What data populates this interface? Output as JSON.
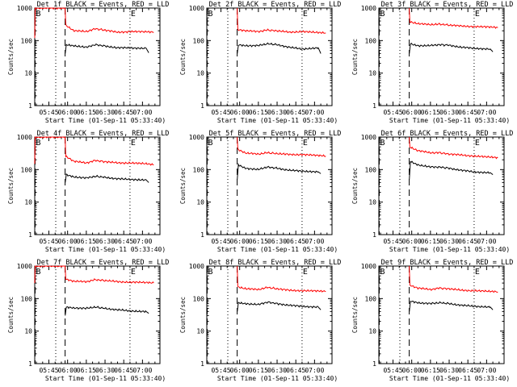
{
  "figure": {
    "colors": {
      "events": "#000000",
      "lld": "#ff0000",
      "axes": "#000000",
      "background": "#ffffff"
    }
  },
  "chart_data": [
    {
      "type": "line",
      "title": "Det 1f BLACK = Events, RED = LLD",
      "xlabel": "Start Time (01-Sep-11 05:33:40)",
      "ylabel": "Counts/sec",
      "xlim": [
        "05:33:40",
        "07:14:00"
      ],
      "ylim": [
        1,
        1000
      ],
      "yscale": "log",
      "xticks": [
        "05:45",
        "06:00",
        "06:15",
        "06:30",
        "06:45",
        "07:00"
      ],
      "yticks": [
        "1",
        "10",
        "100",
        "1000"
      ],
      "markers": [
        {
          "label": "B",
          "time": "05:34:00",
          "style": "dashed"
        },
        {
          "label": "",
          "time": "05:50:30",
          "style": "dotted"
        },
        {
          "label": "",
          "time": "05:58:00",
          "style": "dashed"
        },
        {
          "label": "E",
          "time": "06:50:00",
          "style": "dotted"
        }
      ],
      "series": [
        {
          "role": "lld",
          "x": [
            "05:33:40",
            "05:34:00",
            "05:58:00",
            "05:58:30",
            "06:05:00",
            "06:15:00",
            "06:22:00",
            "06:30:00",
            "06:40:00",
            "06:50:00",
            "07:03:00",
            "07:09:00"
          ],
          "y": [
            120,
            1000,
            1000,
            300,
            200,
            190,
            230,
            210,
            180,
            190,
            185,
            180
          ]
        },
        {
          "role": "events",
          "x": [
            "05:58:05",
            "05:59:00",
            "06:05:00",
            "06:15:00",
            "06:22:00",
            "06:30:00",
            "06:40:00",
            "06:50:00",
            "07:03:00",
            "07:05:00"
          ],
          "y": [
            40,
            75,
            70,
            62,
            75,
            68,
            60,
            60,
            58,
            42
          ]
        }
      ]
    },
    {
      "type": "line",
      "title": "Det 2f BLACK = Events, RED = LLD",
      "xlabel": "Start Time (01-Sep-11 05:33:40)",
      "ylabel": "Counts/sec",
      "xlim": [
        "05:33:40",
        "07:14:00"
      ],
      "ylim": [
        1,
        1000
      ],
      "yscale": "log",
      "xticks": [
        "05:45",
        "06:00",
        "06:15",
        "06:30",
        "06:45",
        "07:00"
      ],
      "yticks": [
        "1",
        "10",
        "100",
        "1000"
      ],
      "markers": [
        {
          "label": "B",
          "time": "05:34:00",
          "style": "dashed"
        },
        {
          "label": "",
          "time": "05:50:30",
          "style": "dotted"
        },
        {
          "label": "",
          "time": "05:58:00",
          "style": "dashed"
        },
        {
          "label": "E",
          "time": "06:50:00",
          "style": "dotted"
        }
      ],
      "series": [
        {
          "role": "lld",
          "x": [
            "05:58:00",
            "05:58:30",
            "06:05:00",
            "06:15:00",
            "06:22:00",
            "06:30:00",
            "06:40:00",
            "06:50:00",
            "07:03:00",
            "07:09:00"
          ],
          "y": [
            1000,
            220,
            200,
            190,
            210,
            200,
            180,
            190,
            175,
            170
          ]
        },
        {
          "role": "events",
          "x": [
            "05:58:05",
            "05:59:00",
            "06:05:00",
            "06:15:00",
            "06:22:00",
            "06:30:00",
            "06:40:00",
            "06:50:00",
            "07:03:00",
            "07:05:00"
          ],
          "y": [
            40,
            75,
            70,
            70,
            80,
            75,
            62,
            55,
            60,
            40
          ]
        }
      ]
    },
    {
      "type": "line",
      "title": "Det 3f BLACK = Events, RED = LLD",
      "xlabel": "Start Time (01-Sep-11 05:33:40)",
      "ylabel": "Counts/sec",
      "xlim": [
        "05:33:40",
        "07:14:00"
      ],
      "ylim": [
        1,
        1000
      ],
      "yscale": "log",
      "xticks": [
        "05:45",
        "06:00",
        "06:15",
        "06:30",
        "06:45",
        "07:00"
      ],
      "yticks": [
        "1",
        "10",
        "100",
        "1000"
      ],
      "markers": [
        {
          "label": "B",
          "time": "05:34:00",
          "style": "dashed"
        },
        {
          "label": "",
          "time": "05:50:30",
          "style": "dotted"
        },
        {
          "label": "",
          "time": "05:58:00",
          "style": "dashed"
        },
        {
          "label": "E",
          "time": "06:50:00",
          "style": "dotted"
        }
      ],
      "series": [
        {
          "role": "lld",
          "x": [
            "05:58:00",
            "05:58:30",
            "06:05:00",
            "06:15:00",
            "06:22:00",
            "06:30:00",
            "06:40:00",
            "06:50:00",
            "07:03:00",
            "07:09:00"
          ],
          "y": [
            1000,
            380,
            330,
            310,
            320,
            300,
            280,
            270,
            260,
            250
          ]
        },
        {
          "role": "events",
          "x": [
            "05:58:05",
            "05:59:00",
            "06:05:00",
            "06:15:00",
            "06:22:00",
            "06:30:00",
            "06:40:00",
            "06:50:00",
            "07:03:00",
            "07:05:00"
          ],
          "y": [
            40,
            80,
            70,
            70,
            75,
            72,
            62,
            58,
            55,
            45
          ]
        }
      ]
    },
    {
      "type": "line",
      "title": "Det 4f BLACK = Events, RED = LLD",
      "xlabel": "Start Time (01-Sep-11 05:33:40)",
      "ylabel": "Counts/sec",
      "xlim": [
        "05:33:40",
        "07:14:00"
      ],
      "ylim": [
        1,
        1000
      ],
      "yscale": "log",
      "xticks": [
        "05:45",
        "06:00",
        "06:15",
        "06:30",
        "06:45",
        "07:00"
      ],
      "yticks": [
        "1",
        "10",
        "100",
        "1000"
      ],
      "markers": [
        {
          "label": "B",
          "time": "05:34:00",
          "style": "dashed"
        },
        {
          "label": "",
          "time": "05:50:30",
          "style": "dotted"
        },
        {
          "label": "",
          "time": "05:58:00",
          "style": "dashed"
        },
        {
          "label": "E",
          "time": "06:50:00",
          "style": "dotted"
        }
      ],
      "series": [
        {
          "role": "lld",
          "x": [
            "05:33:40",
            "05:34:00",
            "05:58:00",
            "05:58:30",
            "06:05:00",
            "06:15:00",
            "06:22:00",
            "06:30:00",
            "06:40:00",
            "06:50:00",
            "07:03:00",
            "07:09:00"
          ],
          "y": [
            150,
            1000,
            1000,
            260,
            180,
            160,
            190,
            175,
            160,
            160,
            150,
            140
          ]
        },
        {
          "role": "events",
          "x": [
            "05:58:05",
            "05:59:00",
            "06:05:00",
            "06:15:00",
            "06:22:00",
            "06:30:00",
            "06:40:00",
            "06:50:00",
            "07:03:00",
            "07:05:00"
          ],
          "y": [
            40,
            70,
            60,
            55,
            62,
            58,
            52,
            50,
            48,
            40
          ]
        }
      ]
    },
    {
      "type": "line",
      "title": "Det 5f BLACK = Events, RED = LLD",
      "xlabel": "Start Time (01-Sep-11 05:33:40)",
      "ylabel": "Counts/sec",
      "xlim": [
        "05:33:40",
        "07:14:00"
      ],
      "ylim": [
        1,
        1000
      ],
      "yscale": "log",
      "xticks": [
        "05:45",
        "06:00",
        "06:15",
        "06:30",
        "06:45",
        "07:00"
      ],
      "yticks": [
        "1",
        "10",
        "100",
        "1000"
      ],
      "markers": [
        {
          "label": "B",
          "time": "05:34:00",
          "style": "dashed"
        },
        {
          "label": "",
          "time": "05:50:30",
          "style": "dotted"
        },
        {
          "label": "",
          "time": "05:58:00",
          "style": "dashed"
        },
        {
          "label": "E",
          "time": "06:50:00",
          "style": "dotted"
        }
      ],
      "series": [
        {
          "role": "lld",
          "x": [
            "05:58:00",
            "05:58:30",
            "06:05:00",
            "06:15:00",
            "06:22:00",
            "06:30:00",
            "06:40:00",
            "06:50:00",
            "07:03:00",
            "07:09:00"
          ],
          "y": [
            1000,
            420,
            320,
            300,
            330,
            310,
            290,
            290,
            270,
            260
          ]
        },
        {
          "role": "events",
          "x": [
            "05:58:05",
            "05:59:00",
            "06:05:00",
            "06:15:00",
            "06:22:00",
            "06:30:00",
            "06:40:00",
            "06:50:00",
            "07:03:00",
            "07:05:00"
          ],
          "y": [
            50,
            140,
            110,
            100,
            120,
            110,
            95,
            90,
            85,
            75
          ]
        }
      ]
    },
    {
      "type": "line",
      "title": "Det 6f BLACK = Events, RED = LLD",
      "xlabel": "Start Time (01-Sep-11 05:33:40)",
      "ylabel": "Counts/sec",
      "xlim": [
        "05:33:40",
        "07:14:00"
      ],
      "ylim": [
        1,
        1000
      ],
      "yscale": "log",
      "xticks": [
        "05:45",
        "06:00",
        "06:15",
        "06:30",
        "06:45",
        "07:00"
      ],
      "yticks": [
        "1",
        "10",
        "100",
        "1000"
      ],
      "markers": [
        {
          "label": "B",
          "time": "05:34:00",
          "style": "dashed"
        },
        {
          "label": "",
          "time": "05:50:30",
          "style": "dotted"
        },
        {
          "label": "",
          "time": "05:58:00",
          "style": "dashed"
        },
        {
          "label": "E",
          "time": "06:50:00",
          "style": "dotted"
        }
      ],
      "series": [
        {
          "role": "lld",
          "x": [
            "05:58:00",
            "05:58:30",
            "06:05:00",
            "06:15:00",
            "06:22:00",
            "06:30:00",
            "06:40:00",
            "06:50:00",
            "07:03:00",
            "07:09:00"
          ],
          "y": [
            1000,
            500,
            380,
            330,
            330,
            300,
            280,
            260,
            240,
            230
          ]
        },
        {
          "role": "events",
          "x": [
            "05:58:05",
            "05:59:00",
            "06:05:00",
            "06:15:00",
            "06:22:00",
            "06:30:00",
            "06:40:00",
            "06:50:00",
            "07:03:00",
            "07:05:00"
          ],
          "y": [
            50,
            180,
            140,
            120,
            120,
            110,
            95,
            85,
            80,
            70
          ]
        }
      ]
    },
    {
      "type": "line",
      "title": "Det 7f BLACK = Events, RED = LLD",
      "xlabel": "Start Time (01-Sep-11 05:33:40)",
      "ylabel": "Counts/sec",
      "xlim": [
        "05:33:40",
        "07:14:00"
      ],
      "ylim": [
        1,
        1000
      ],
      "yscale": "log",
      "xticks": [
        "05:45",
        "06:00",
        "06:15",
        "06:30",
        "06:45",
        "07:00"
      ],
      "yticks": [
        "1",
        "10",
        "100",
        "1000"
      ],
      "markers": [
        {
          "label": "B",
          "time": "05:34:00",
          "style": "dashed"
        },
        {
          "label": "",
          "time": "05:50:30",
          "style": "dotted"
        },
        {
          "label": "",
          "time": "05:58:00",
          "style": "dashed"
        },
        {
          "label": "E",
          "time": "06:50:00",
          "style": "dotted"
        }
      ],
      "series": [
        {
          "role": "lld",
          "x": [
            "05:33:40",
            "05:34:00",
            "05:58:00",
            "05:58:30",
            "06:05:00",
            "06:15:00",
            "06:22:00",
            "06:30:00",
            "06:40:00",
            "06:50:00",
            "07:03:00",
            "07:09:00"
          ],
          "y": [
            300,
            1000,
            1000,
            400,
            340,
            330,
            380,
            360,
            330,
            320,
            310,
            300
          ]
        },
        {
          "role": "events",
          "x": [
            "05:58:05",
            "05:59:00",
            "06:05:00",
            "06:15:00",
            "06:22:00",
            "06:30:00",
            "06:40:00",
            "06:50:00",
            "07:03:00",
            "07:05:00"
          ],
          "y": [
            30,
            55,
            52,
            50,
            55,
            50,
            45,
            42,
            40,
            35
          ]
        }
      ]
    },
    {
      "type": "line",
      "title": "Det 8f BLACK = Events, RED = LLD",
      "xlabel": "Start Time (01-Sep-11 05:33:40)",
      "ylabel": "Counts/sec",
      "xlim": [
        "05:33:40",
        "07:14:00"
      ],
      "ylim": [
        1,
        1000
      ],
      "yscale": "log",
      "xticks": [
        "05:45",
        "06:00",
        "06:15",
        "06:30",
        "06:45",
        "07:00"
      ],
      "yticks": [
        "1",
        "10",
        "100",
        "1000"
      ],
      "markers": [
        {
          "label": "B",
          "time": "05:34:00",
          "style": "dashed"
        },
        {
          "label": "",
          "time": "05:50:30",
          "style": "dotted"
        },
        {
          "label": "",
          "time": "05:58:00",
          "style": "dashed"
        },
        {
          "label": "E",
          "time": "06:50:00",
          "style": "dotted"
        }
      ],
      "series": [
        {
          "role": "lld",
          "x": [
            "05:58:00",
            "05:58:30",
            "06:05:00",
            "06:15:00",
            "06:22:00",
            "06:30:00",
            "06:40:00",
            "06:50:00",
            "07:03:00",
            "07:09:00"
          ],
          "y": [
            1000,
            230,
            200,
            190,
            220,
            200,
            180,
            175,
            170,
            165
          ]
        },
        {
          "role": "events",
          "x": [
            "05:58:05",
            "05:59:00",
            "06:05:00",
            "06:15:00",
            "06:22:00",
            "06:30:00",
            "06:40:00",
            "06:50:00",
            "07:03:00",
            "07:05:00"
          ],
          "y": [
            40,
            75,
            70,
            65,
            78,
            70,
            62,
            58,
            55,
            45
          ]
        }
      ]
    },
    {
      "type": "line",
      "title": "Det 9f BLACK = Events, RED = LLD",
      "xlabel": "Start Time (01-Sep-11 05:33:40)",
      "ylabel": "Counts/sec",
      "xlim": [
        "05:33:40",
        "07:14:00"
      ],
      "ylim": [
        1,
        1000
      ],
      "yscale": "log",
      "xticks": [
        "05:45",
        "06:00",
        "06:15",
        "06:30",
        "06:45",
        "07:00"
      ],
      "yticks": [
        "1",
        "10",
        "100",
        "1000"
      ],
      "markers": [
        {
          "label": "B",
          "time": "05:34:00",
          "style": "dashed"
        },
        {
          "label": "",
          "time": "05:50:30",
          "style": "dotted"
        },
        {
          "label": "",
          "time": "05:58:00",
          "style": "dashed"
        },
        {
          "label": "E",
          "time": "06:50:00",
          "style": "dotted"
        }
      ],
      "series": [
        {
          "role": "lld",
          "x": [
            "05:58:00",
            "05:58:30",
            "06:05:00",
            "06:15:00",
            "06:22:00",
            "06:30:00",
            "06:40:00",
            "06:50:00",
            "07:03:00",
            "07:09:00"
          ],
          "y": [
            1000,
            260,
            210,
            190,
            210,
            200,
            180,
            175,
            165,
            160
          ]
        },
        {
          "role": "events",
          "x": [
            "05:58:05",
            "05:59:00",
            "06:05:00",
            "06:15:00",
            "06:22:00",
            "06:30:00",
            "06:40:00",
            "06:50:00",
            "07:03:00",
            "07:05:00"
          ],
          "y": [
            40,
            85,
            75,
            70,
            75,
            70,
            62,
            58,
            55,
            45
          ]
        }
      ]
    }
  ]
}
